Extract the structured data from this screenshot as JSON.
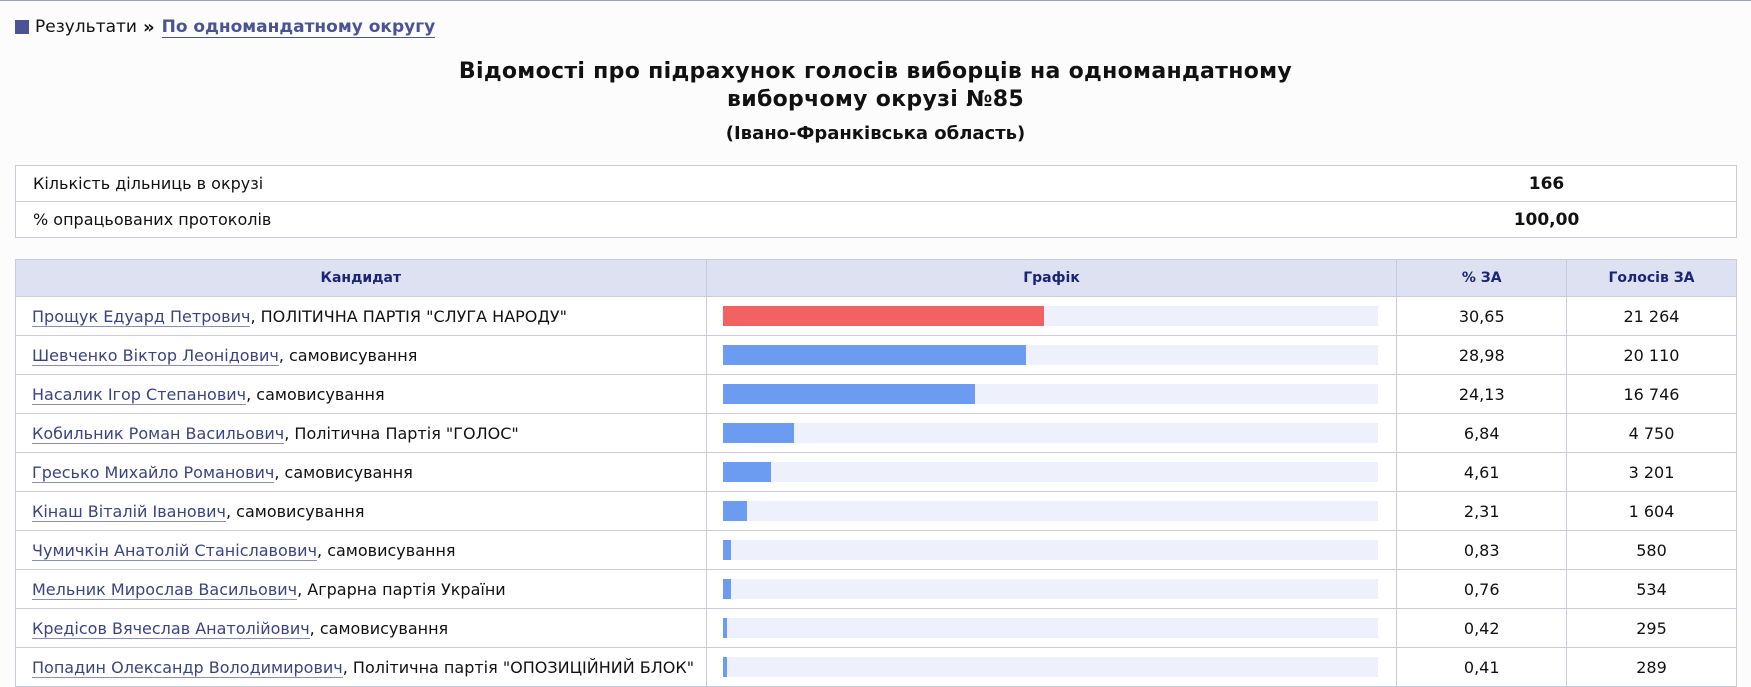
{
  "breadcrumb": {
    "root": "Результати",
    "separator": "»",
    "current": "По одномандатному округу"
  },
  "header": {
    "title_line1": "Відомості про підрахунок голосів виборців на одномандатному",
    "title_line2": "виборчому окрузі №85",
    "region": "(Івано-Франківська область)"
  },
  "summary": [
    {
      "label": "Кількість дільниць в окрузі",
      "value": "166"
    },
    {
      "label": "% опрацьованих протоколів",
      "value": "100,00"
    }
  ],
  "columns": {
    "candidate": "Кандидат",
    "chart": "Графік",
    "percent": "% ЗА",
    "votes": "Голосів ЗА"
  },
  "colors": {
    "lead_bar": "#f26262",
    "bar": "#6b9cf2",
    "track": "#eef0fb",
    "header_bg": "#dde1f2"
  },
  "candidates": [
    {
      "name": "Прощук Едуард Петрович",
      "party": ", ПОЛІТИЧНА ПАРТІЯ \"СЛУГА НАРОДУ\"",
      "percent": "30,65",
      "votes": "21 264"
    },
    {
      "name": "Шевченко Віктор Леонідович",
      "party": ", самовисування",
      "percent": "28,98",
      "votes": "20 110"
    },
    {
      "name": "Насалик Ігор Степанович",
      "party": ", самовисування",
      "percent": "24,13",
      "votes": "16 746"
    },
    {
      "name": "Кобильник Роман Васильович",
      "party": ", Політична Партія \"ГОЛОС\"",
      "percent": "6,84",
      "votes": "4 750"
    },
    {
      "name": "Гресько Михайло Романович",
      "party": ", самовисування",
      "percent": "4,61",
      "votes": "3 201"
    },
    {
      "name": "Кінаш Віталій Іванович",
      "party": ", самовисування",
      "percent": "2,31",
      "votes": "1 604"
    },
    {
      "name": "Чумичкін Анатолій Станіславович",
      "party": ", самовисування",
      "percent": "0,83",
      "votes": "580"
    },
    {
      "name": "Мельник Мирослав Васильович",
      "party": ", Аграрна партія України",
      "percent": "0,76",
      "votes": "534"
    },
    {
      "name": "Кредісов Вячеслав Анатолійович",
      "party": ", самовисування",
      "percent": "0,42",
      "votes": "295"
    },
    {
      "name": "Попадин Олександр Володимирович",
      "party": ", Політична партія \"ОПОЗИЦІЙНИЙ БЛОК\"",
      "percent": "0,41",
      "votes": "289"
    }
  ]
}
